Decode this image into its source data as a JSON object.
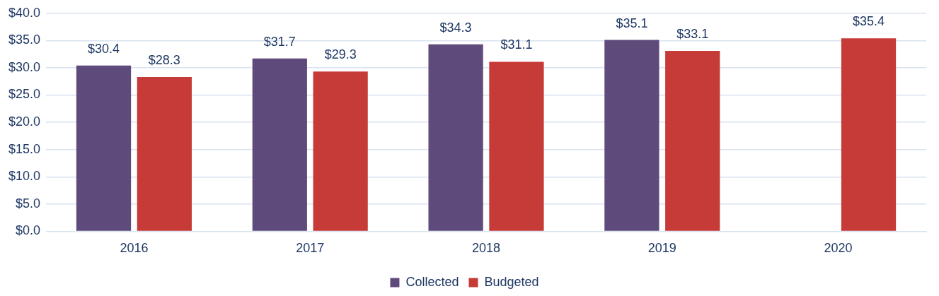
{
  "chart_data": {
    "type": "bar",
    "categories": [
      "2016",
      "2017",
      "2018",
      "2019",
      "2020"
    ],
    "series": [
      {
        "name": "Collected",
        "color": "#5f4b7b",
        "values": [
          30.4,
          31.7,
          34.3,
          35.1,
          null
        ],
        "value_labels": [
          "$30.4",
          "$31.7",
          "$34.3",
          "$35.1",
          null
        ]
      },
      {
        "name": "Budgeted",
        "color": "#c63b38",
        "values": [
          28.3,
          29.3,
          31.1,
          33.1,
          35.4
        ],
        "value_labels": [
          "$28.3",
          "$29.3",
          "$31.1",
          "$33.1",
          "$35.4"
        ]
      }
    ],
    "ylim": [
      0,
      40
    ],
    "yticks": [
      {
        "value": 0,
        "label": "$0.0"
      },
      {
        "value": 5,
        "label": "$5.0"
      },
      {
        "value": 10,
        "label": "$10.0"
      },
      {
        "value": 15,
        "label": "$15.0"
      },
      {
        "value": 20,
        "label": "$20.0"
      },
      {
        "value": 25,
        "label": "$25.0"
      },
      {
        "value": 30,
        "label": "$30.0"
      },
      {
        "value": 35,
        "label": "$35.0"
      },
      {
        "value": 40,
        "label": "$40.0"
      }
    ],
    "grid": "y",
    "legend": "bottom"
  }
}
